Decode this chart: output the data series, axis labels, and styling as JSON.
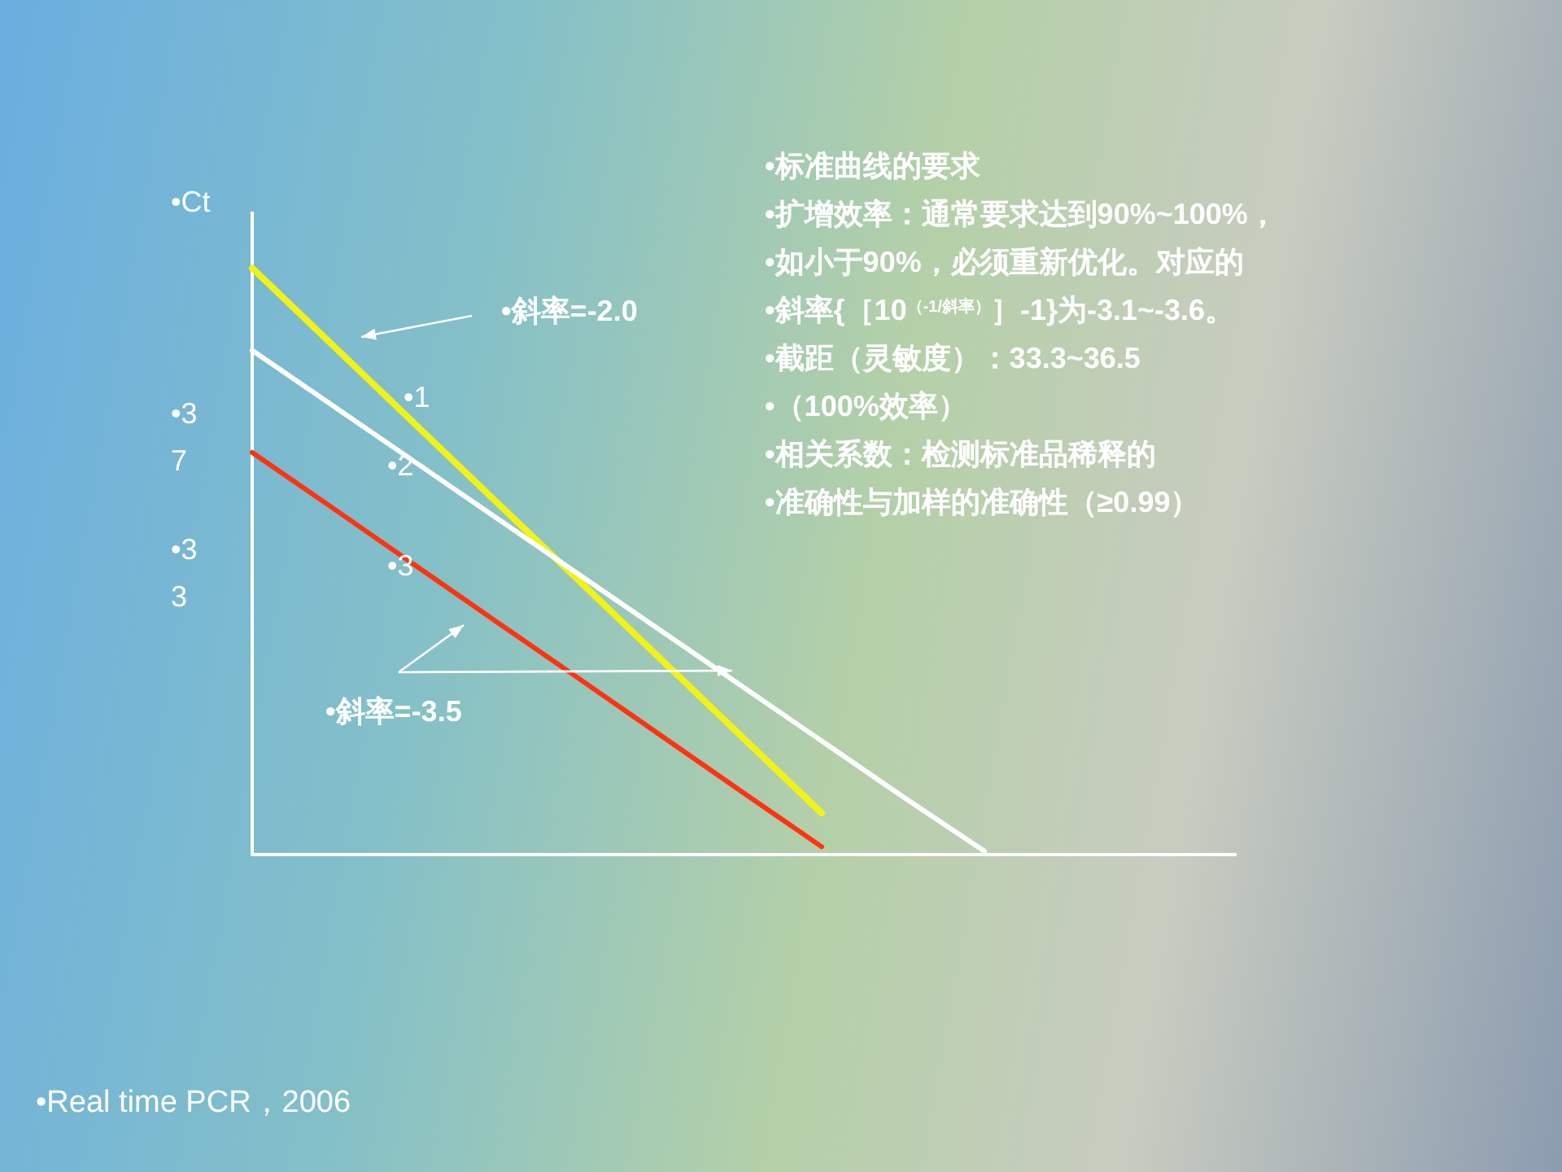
{
  "chart_data": {
    "type": "line",
    "ylabel": "•Ct",
    "categories": [
      null,
      null,
      null,
      null,
      null,
      null,
      null,
      null,
      null,
      null,
      null,
      null,
      null
    ],
    "ylim": [
      24.7,
      43.6
    ],
    "yticks": [
      {
        "value": 37,
        "label": "•37"
      },
      {
        "value": 33,
        "label": "•33"
      }
    ],
    "tick_labels": "y",
    "series": [
      {
        "name": "•1",
        "color": "#f2f218",
        "values": [
          41.94,
          39.65,
          37.36,
          35.07,
          32.79,
          30.5,
          28.21,
          25.92,
          null,
          null,
          null,
          null,
          null
        ]
      },
      {
        "name": "•2",
        "color": "#ffffff",
        "values": [
          39.52,
          37.88,
          36.24,
          34.6,
          32.96,
          31.32,
          29.68,
          28.04,
          26.4,
          24.8,
          null,
          null,
          null
        ]
      },
      {
        "name": "•3",
        "color": "#ff3311",
        "values": [
          36.52,
          34.87,
          33.21,
          31.55,
          29.9,
          28.24,
          26.58,
          24.93,
          null,
          null,
          null,
          null,
          null
        ]
      }
    ],
    "annotations": [
      "•斜率=-2.0",
      "•斜率=-3.5",
      "•标准曲线的要求",
      "•扩增效率：通常要求达到90%~100%，",
      "•如小于90%，必须重新优化。对应的",
      "•斜率{［10$^{（-1/斜率）}$］-1}为-3.1~-3.6。",
      "•截距（灵敏度）：33.3~36.5",
      "•（100%效率）",
      "•相关系数：检测标准品稀释的",
      "•准确性与加样的准确性（≥0.99）",
      "•Real time PCR，2006"
    ]
  }
}
